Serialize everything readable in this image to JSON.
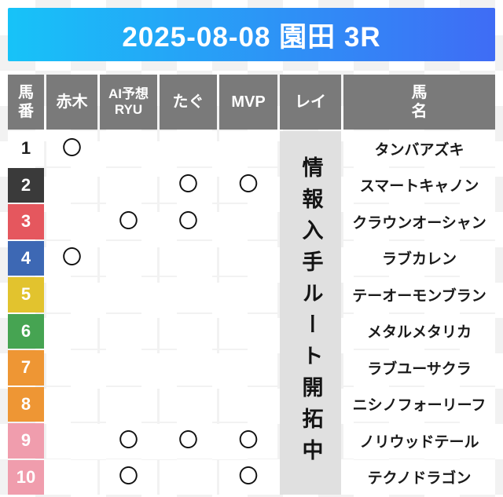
{
  "banner": {
    "title": "2025-08-08 園田 3R",
    "gradient_from": "#17c3f8",
    "gradient_to": "#3f6cf5",
    "text_color": "#ffffff"
  },
  "table": {
    "header_bg": "#7a7a7a",
    "header_text_color": "#ffffff",
    "columns": {
      "umaban": {
        "line1": "馬",
        "line2": "番"
      },
      "akagi": {
        "label": "赤木"
      },
      "ai_ryu": {
        "line1": "AI予想",
        "line2": "RYU"
      },
      "tagu": {
        "label": "たぐ"
      },
      "mvp": {
        "label": "MVP"
      },
      "rei": {
        "label": "レイ"
      },
      "bamei": {
        "line1": "馬",
        "line2": "名"
      }
    },
    "mark_symbol": "〇",
    "rei_notice": {
      "text": "情報入手ルート開拓中",
      "bg": "#e0e0e0",
      "text_color": "#141414"
    },
    "rows": [
      {
        "number": "1",
        "number_bg": "#ffffff",
        "number_fg": "#222222",
        "akagi": "〇",
        "ai_ryu": "",
        "tagu": "",
        "mvp": "",
        "horse": "タンバアズキ"
      },
      {
        "number": "2",
        "number_bg": "#3a3a3a",
        "number_fg": "#ffffff",
        "akagi": "",
        "ai_ryu": "",
        "tagu": "〇",
        "mvp": "〇",
        "horse": "スマートキャノン"
      },
      {
        "number": "3",
        "number_bg": "#e5575e",
        "number_fg": "#ffffff",
        "akagi": "",
        "ai_ryu": "〇",
        "tagu": "〇",
        "mvp": "",
        "horse": "クラウンオーシャン"
      },
      {
        "number": "4",
        "number_bg": "#3d68b4",
        "number_fg": "#ffffff",
        "akagi": "〇",
        "ai_ryu": "",
        "tagu": "",
        "mvp": "",
        "horse": "ラブカレン"
      },
      {
        "number": "5",
        "number_bg": "#e2c32e",
        "number_fg": "#ffffff",
        "akagi": "",
        "ai_ryu": "",
        "tagu": "",
        "mvp": "",
        "horse": "テーオーモンブラン"
      },
      {
        "number": "6",
        "number_bg": "#46a452",
        "number_fg": "#ffffff",
        "akagi": "",
        "ai_ryu": "",
        "tagu": "",
        "mvp": "",
        "horse": "メタルメタリカ"
      },
      {
        "number": "7",
        "number_bg": "#ee9634",
        "number_fg": "#ffffff",
        "akagi": "",
        "ai_ryu": "",
        "tagu": "",
        "mvp": "",
        "horse": "ラブユーサクラ"
      },
      {
        "number": "8",
        "number_bg": "#ee9634",
        "number_fg": "#ffffff",
        "akagi": "",
        "ai_ryu": "",
        "tagu": "",
        "mvp": "",
        "horse": "ニシノフォーリーフ"
      },
      {
        "number": "9",
        "number_bg": "#f09dad",
        "number_fg": "#ffffff",
        "akagi": "",
        "ai_ryu": "〇",
        "tagu": "〇",
        "mvp": "〇",
        "horse": "ノリウッドテール"
      },
      {
        "number": "10",
        "number_bg": "#f09dad",
        "number_fg": "#ffffff",
        "akagi": "",
        "ai_ryu": "〇",
        "tagu": "",
        "mvp": "〇",
        "horse": "テクノドラゴン"
      }
    ]
  }
}
